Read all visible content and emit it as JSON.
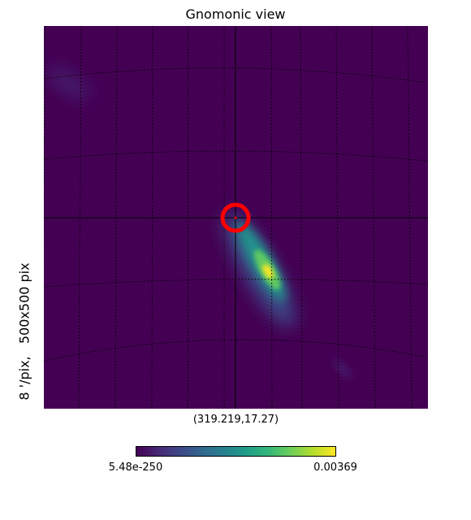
{
  "chart_data": {
    "type": "heatmap",
    "title": "Gnomonic view",
    "center_label": "(319.219,17.27)",
    "side_label": "8 '/pix,   500x500 pix",
    "colormap": "viridis",
    "colorbar": {
      "min_label": "5.48e-250",
      "max_label": "0.00369"
    },
    "marker": {
      "type": "circle",
      "color": "#ff0000"
    },
    "colors": {
      "background": "#440154",
      "low": "#3b528b",
      "mid": "#21918c",
      "high": "#5ec962",
      "peak": "#fde725",
      "marker": "#ff0000"
    }
  }
}
